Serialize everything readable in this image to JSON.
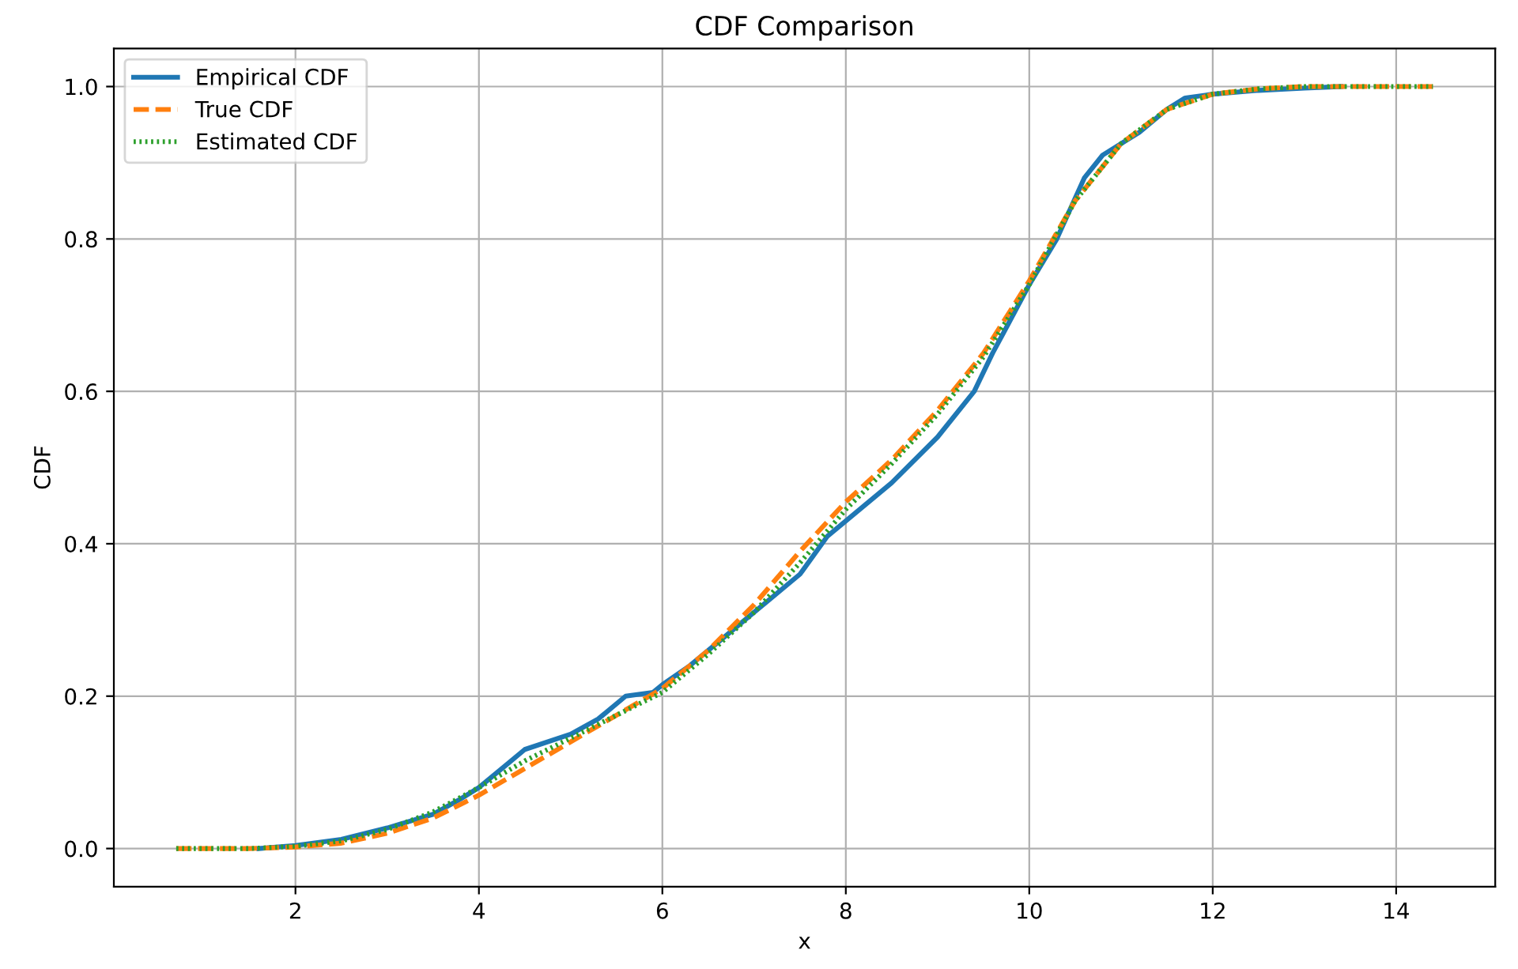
{
  "chart_data": {
    "type": "line",
    "title": "CDF Comparison",
    "xlabel": "x",
    "ylabel": "CDF",
    "xlim": [
      0.02,
      15.08
    ],
    "xticks": [
      2,
      4,
      6,
      8,
      10,
      12,
      14
    ],
    "ylim": [
      -0.05,
      1.05
    ],
    "yticks": [
      {
        "value": 0,
        "label": "0.0"
      },
      0.2,
      0.4,
      0.6,
      0.8,
      {
        "value": 1,
        "label": "1.0"
      }
    ],
    "grid": true,
    "legend": "top left",
    "series": [
      {
        "name": "Empirical CDF",
        "color": "#1f77b4",
        "line_style": "solid",
        "x": [
          1.6,
          2.0,
          2.5,
          3.0,
          3.5,
          3.8,
          4.0,
          4.3,
          4.5,
          5.0,
          5.3,
          5.6,
          5.9,
          6.0,
          6.3,
          6.7,
          7.0,
          7.5,
          7.8,
          8.0,
          8.5,
          9.0,
          9.4,
          9.6,
          10.0,
          10.3,
          10.6,
          10.8,
          11.2,
          11.5,
          11.7,
          12.0,
          12.5,
          13.0,
          13.4
        ],
        "values": [
          0.0,
          0.004,
          0.012,
          0.027,
          0.045,
          0.065,
          0.08,
          0.11,
          0.13,
          0.15,
          0.17,
          0.2,
          0.205,
          0.215,
          0.24,
          0.28,
          0.31,
          0.36,
          0.41,
          0.43,
          0.48,
          0.54,
          0.6,
          0.65,
          0.74,
          0.8,
          0.88,
          0.91,
          0.94,
          0.97,
          0.985,
          0.99,
          0.995,
          0.998,
          1.0
        ]
      },
      {
        "name": "True CDF",
        "color": "#ff7f0e",
        "line_style": "dashed",
        "x": [
          0.7,
          1.5,
          2.0,
          2.5,
          3.0,
          3.5,
          4.0,
          4.5,
          5.0,
          5.5,
          6.0,
          6.5,
          7.0,
          7.5,
          8.0,
          8.5,
          9.0,
          9.5,
          10.0,
          10.5,
          11.0,
          11.5,
          12.0,
          12.5,
          13.0,
          14.4
        ],
        "values": [
          0.0,
          0.0,
          0.002,
          0.007,
          0.02,
          0.04,
          0.07,
          0.105,
          0.14,
          0.175,
          0.21,
          0.26,
          0.32,
          0.39,
          0.455,
          0.51,
          0.575,
          0.65,
          0.745,
          0.85,
          0.925,
          0.97,
          0.99,
          0.997,
          1.0,
          1.0
        ]
      },
      {
        "name": "Estimated CDF",
        "color": "#2ca02c",
        "line_style": "dotted",
        "x": [
          0.7,
          1.5,
          2.0,
          2.5,
          3.0,
          3.5,
          4.0,
          4.5,
          5.0,
          5.5,
          6.0,
          6.5,
          7.0,
          7.5,
          8.0,
          8.5,
          9.0,
          9.5,
          10.0,
          10.5,
          11.0,
          11.5,
          12.0,
          12.5,
          13.0,
          14.4
        ],
        "values": [
          0.0,
          0.0,
          0.003,
          0.01,
          0.025,
          0.048,
          0.08,
          0.115,
          0.145,
          0.175,
          0.205,
          0.255,
          0.31,
          0.375,
          0.445,
          0.505,
          0.57,
          0.645,
          0.74,
          0.85,
          0.925,
          0.97,
          0.99,
          0.997,
          1.0,
          1.0
        ]
      }
    ]
  }
}
